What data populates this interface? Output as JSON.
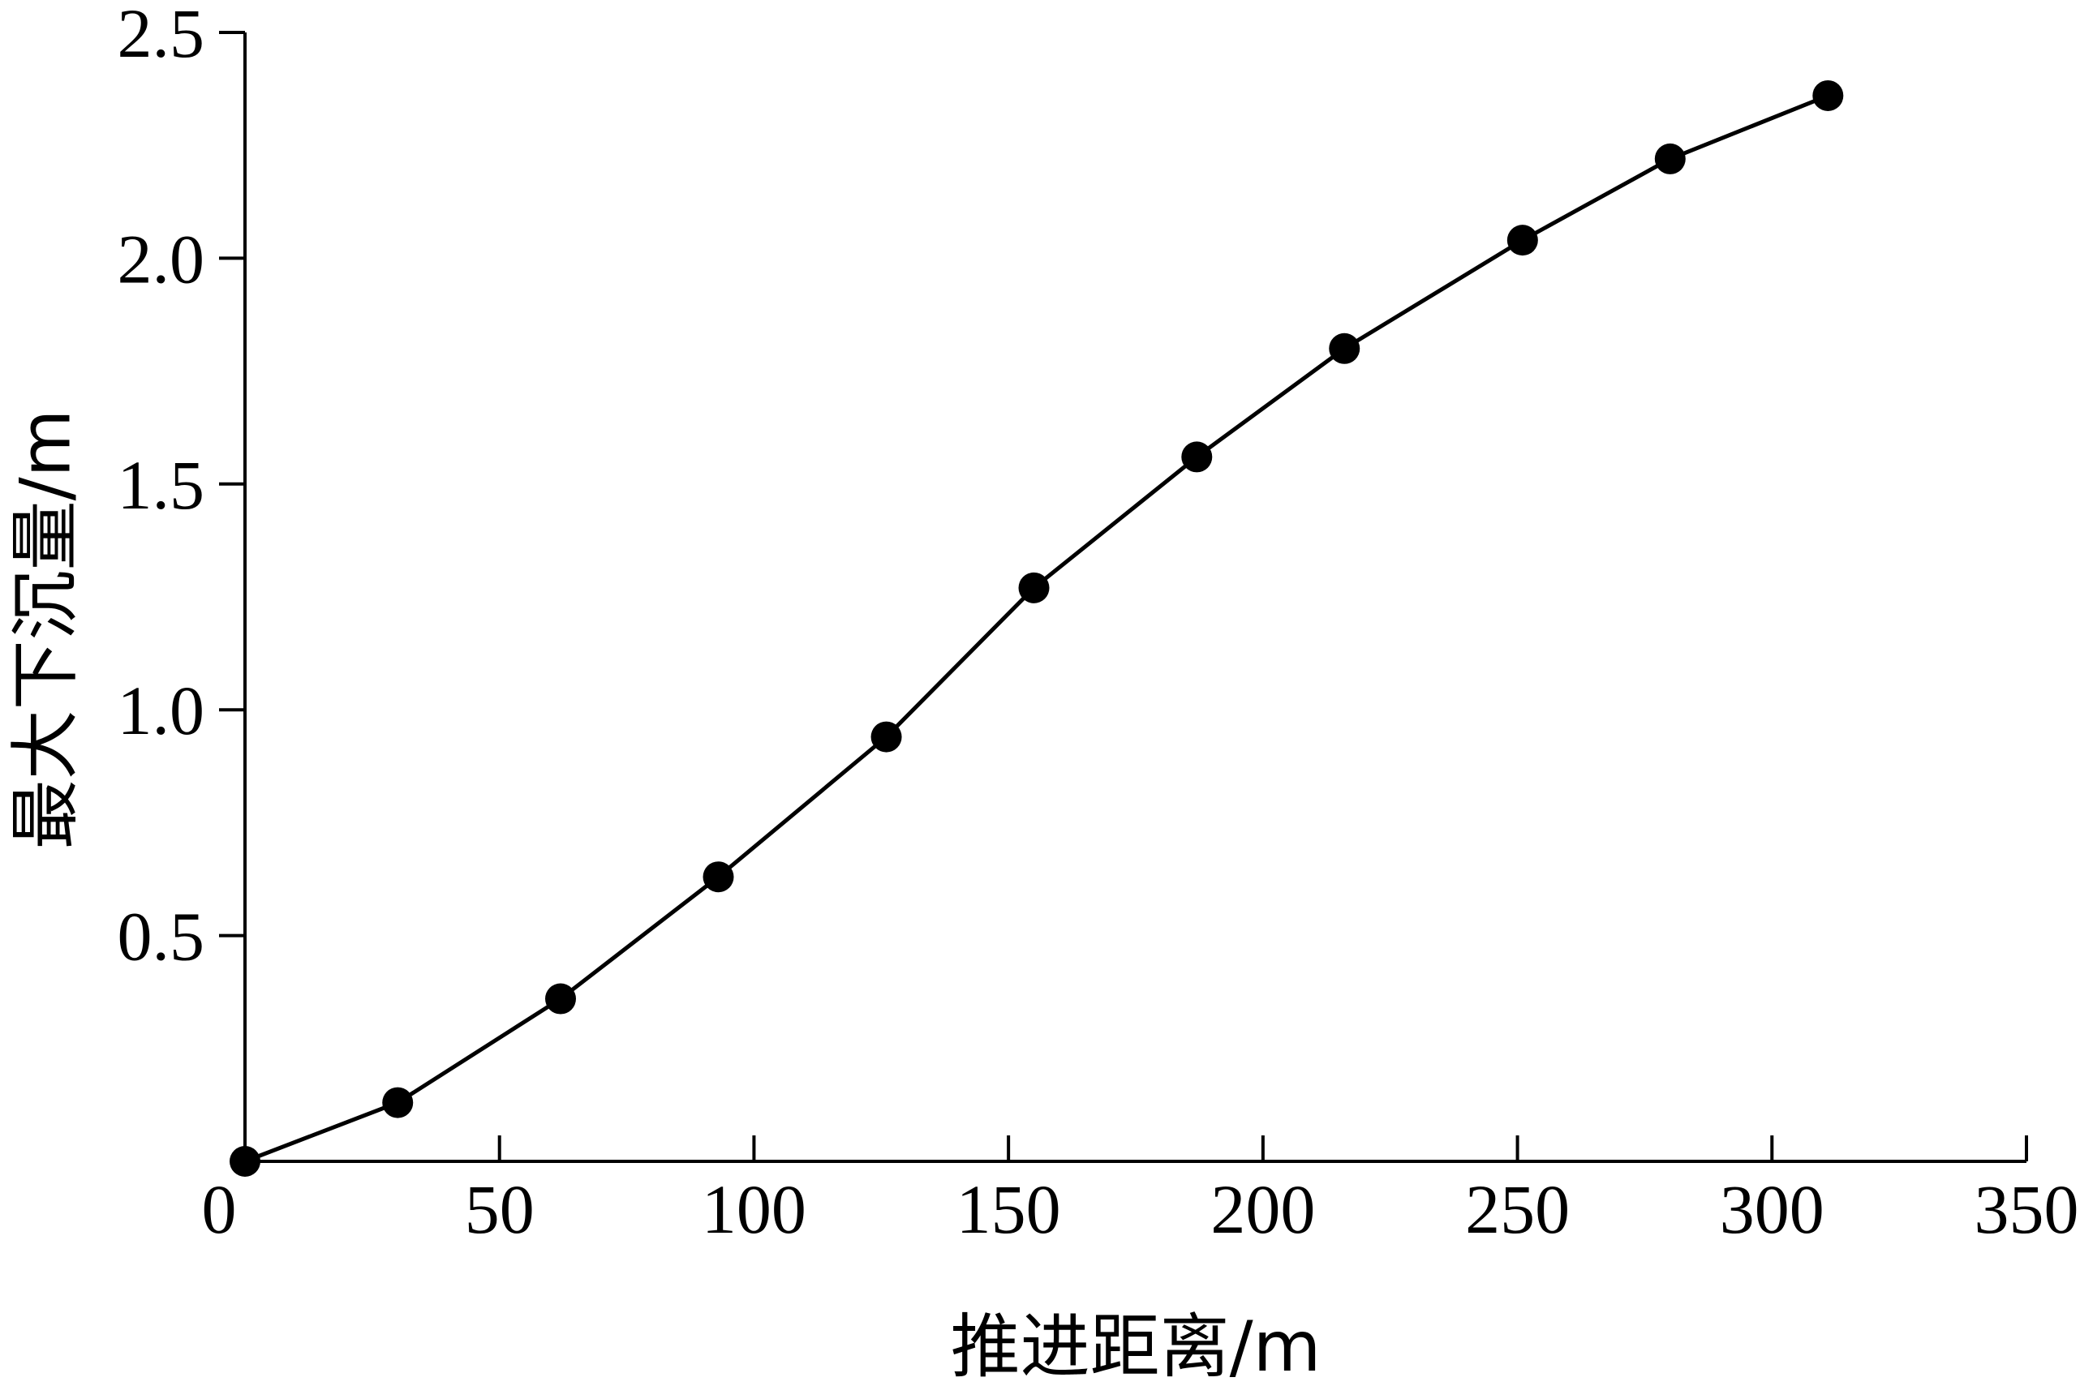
{
  "chart_data": {
    "type": "line",
    "xlabel": "推进距离/m",
    "ylabel": "最大下沉量/m",
    "xlim": [
      0,
      350
    ],
    "ylim": [
      0,
      2.5
    ],
    "x_ticks": [
      "0",
      "50",
      "100",
      "150",
      "200",
      "250",
      "300",
      "350"
    ],
    "y_ticks": [
      "0.5",
      "1.0",
      "1.5",
      "2.0",
      "2.5"
    ],
    "grid": false,
    "legend": "none",
    "line_color": "#000000",
    "marker": "filled-circle",
    "series": [
      {
        "x": [
          0,
          30,
          62,
          93,
          126,
          155,
          187,
          216,
          251,
          280,
          311
        ],
        "y": [
          0.0,
          0.13,
          0.36,
          0.63,
          0.94,
          1.27,
          1.56,
          1.8,
          2.04,
          2.22,
          2.36
        ]
      }
    ]
  }
}
